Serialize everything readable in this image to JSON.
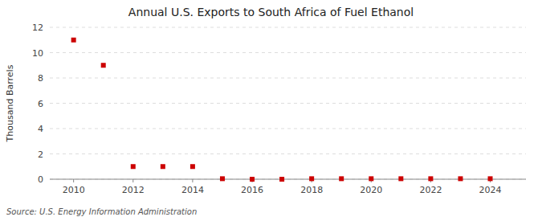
{
  "chart_data": {
    "type": "scatter",
    "title": "Annual U.S. Exports to South Africa of Fuel Ethanol",
    "ylabel": "Thousand Barrels",
    "source": "Source: U.S. Energy Information Administration",
    "x": [
      2010,
      2011,
      2012,
      2013,
      2014,
      2015,
      2016,
      2017,
      2018,
      2019,
      2020,
      2021,
      2022,
      2023,
      2024
    ],
    "values": [
      11.0,
      9.0,
      1.0,
      1.0,
      1.0,
      0.04,
      0.0,
      0.0,
      0.04,
      0.04,
      0.04,
      0.04,
      0.04,
      0.04,
      0.04
    ],
    "color": "#cc0000",
    "marker": "square",
    "xlim": [
      2009.2,
      2025.2
    ],
    "ylim": [
      0,
      12
    ],
    "xticks": [
      2010,
      2012,
      2014,
      2016,
      2018,
      2020,
      2022,
      2024
    ],
    "yticks": [
      0,
      2,
      4,
      6,
      8,
      10,
      12
    ],
    "grid": true
  }
}
